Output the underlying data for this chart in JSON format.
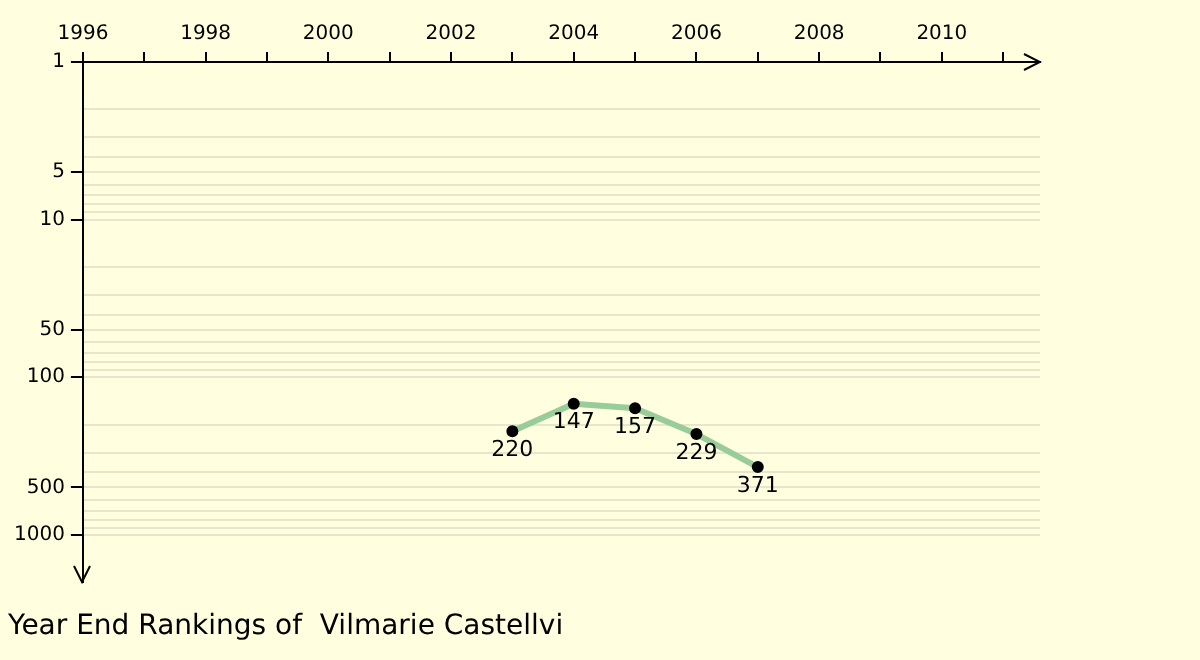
{
  "chart_data": {
    "type": "line",
    "title": "Year End Rankings of  Vilmarie Castellvi",
    "x": [
      2003,
      2004,
      2005,
      2006,
      2007
    ],
    "series": [
      {
        "color": "#99cc99",
        "values": [
          220,
          147,
          157,
          229,
          371
        ]
      }
    ],
    "xlim": [
      1996,
      2011.6
    ],
    "xticks": [
      1996,
      {
        "value": 1997,
        "label": null
      },
      1998,
      {
        "value": 1999,
        "label": null
      },
      2000,
      {
        "value": 2001,
        "label": null
      },
      2002,
      {
        "value": 2003,
        "label": null
      },
      2004,
      {
        "value": 2005,
        "label": null
      },
      2006,
      {
        "value": 2007,
        "label": null
      },
      2008,
      {
        "value": 2009,
        "label": null
      },
      2010,
      {
        "value": 2011,
        "label": null
      }
    ],
    "ylim": [
      2000,
      1
    ],
    "yticks": [
      1,
      {
        "value": 2,
        "label": null
      },
      {
        "value": 3,
        "label": null
      },
      {
        "value": 4,
        "label": null
      },
      5,
      {
        "value": 6,
        "label": null
      },
      {
        "value": 7,
        "label": null
      },
      {
        "value": 8,
        "label": null
      },
      {
        "value": 9,
        "label": null
      },
      10,
      {
        "value": 20,
        "label": null
      },
      {
        "value": 30,
        "label": null
      },
      {
        "value": 40,
        "label": null
      },
      50,
      {
        "value": 60,
        "label": null
      },
      {
        "value": 70,
        "label": null
      },
      {
        "value": 80,
        "label": null
      },
      {
        "value": 90,
        "label": null
      },
      100,
      {
        "value": 200,
        "label": null
      },
      {
        "value": 300,
        "label": null
      },
      {
        "value": 400,
        "label": null
      },
      500,
      {
        "value": 600,
        "label": null
      },
      {
        "value": 700,
        "label": null
      },
      {
        "value": 800,
        "label": null
      },
      {
        "value": 900,
        "label": null
      },
      1000
    ],
    "log": "y",
    "grid": "y",
    "marker": "circle",
    "line_style": "solid",
    "data_labels": true,
    "legend": false
  }
}
